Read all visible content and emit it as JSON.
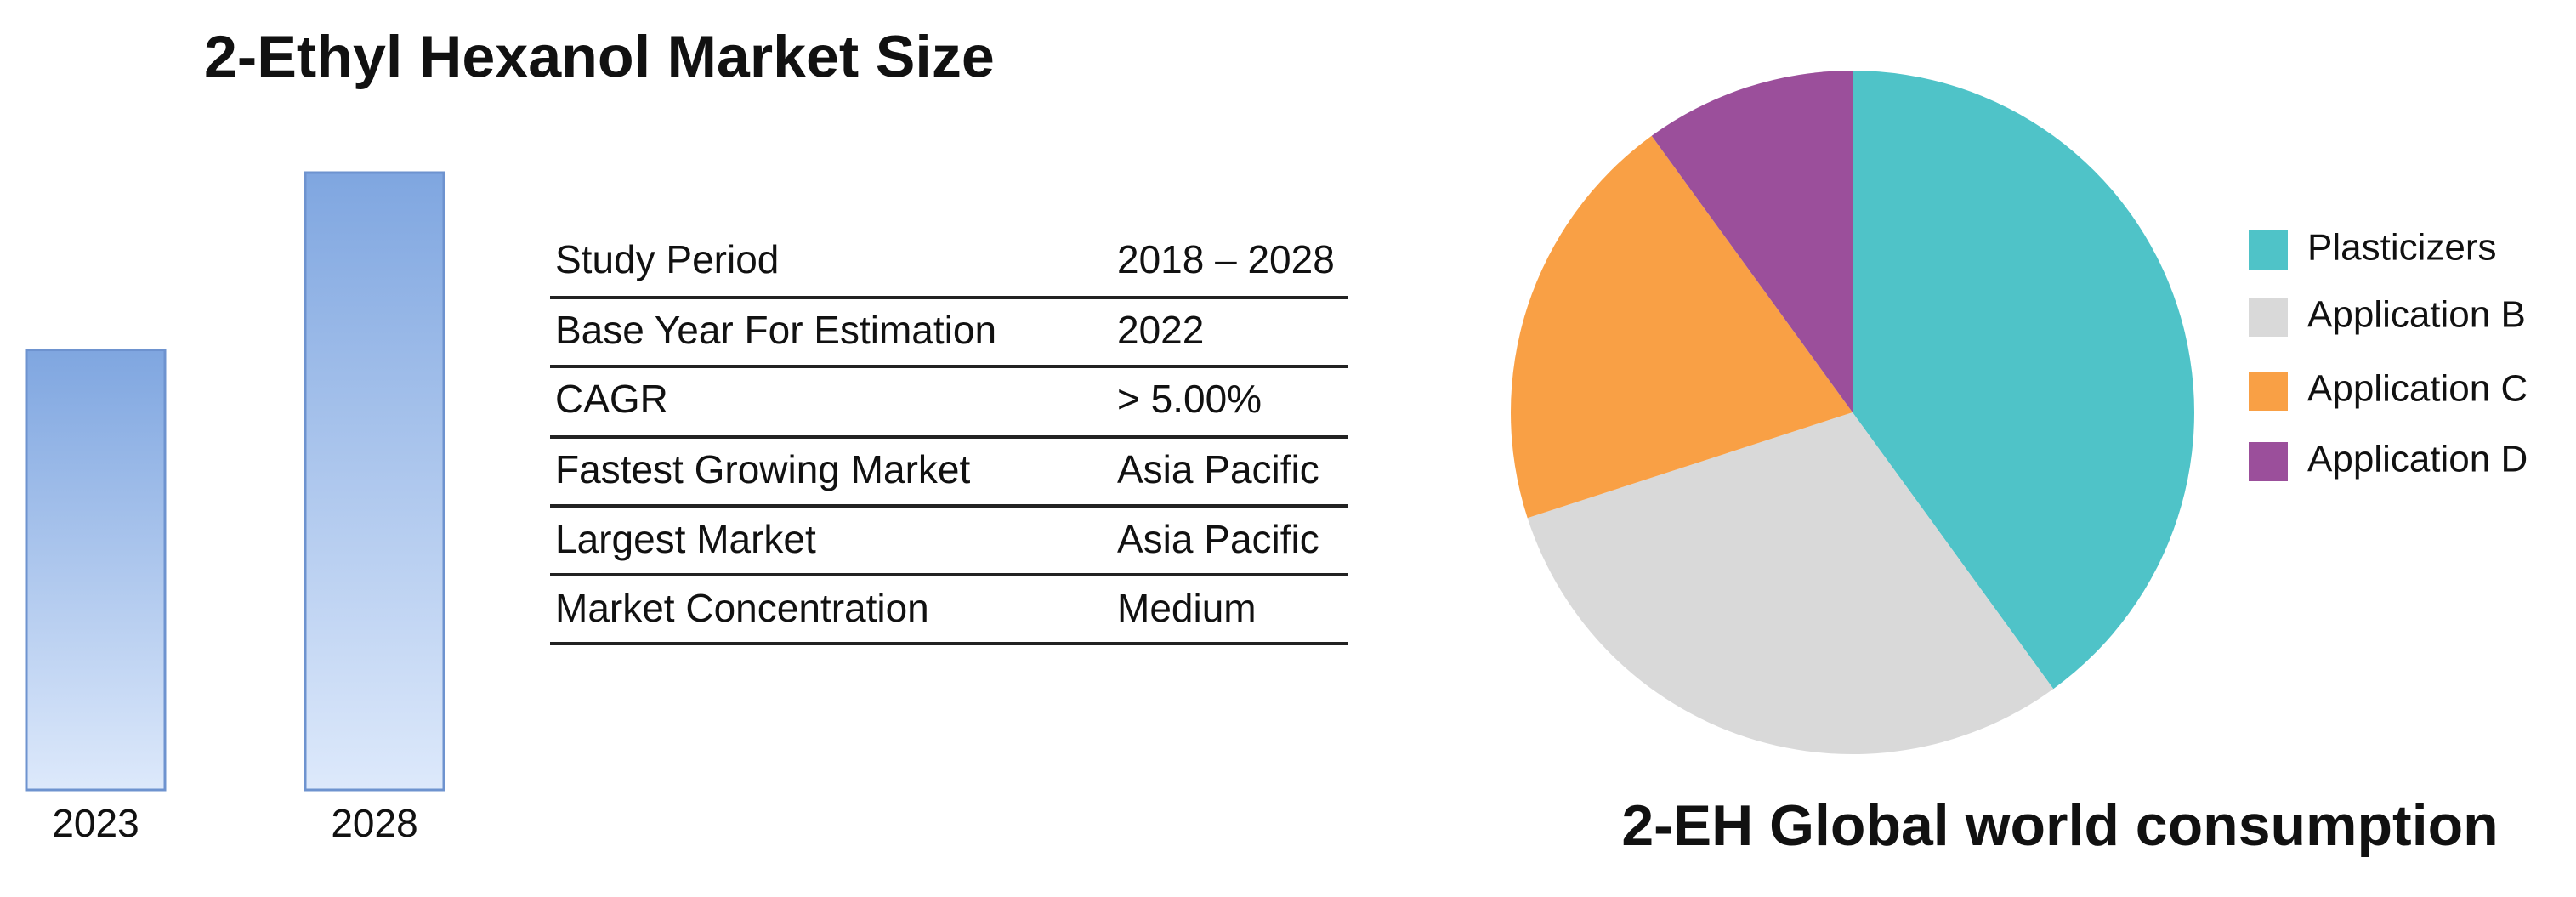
{
  "chart_data": [
    {
      "type": "bar",
      "title": "2-Ethyl Hexanol Market Size",
      "categories": [
        "2023",
        "2028"
      ],
      "values": [
        268,
        376
      ],
      "ylim": [
        0,
        376
      ],
      "color": "#7fa6e0"
    },
    {
      "type": "pie",
      "title": "2-EH Global world consumption",
      "categories": [
        "Plasticizers",
        "Application B",
        "Application C",
        "Application D"
      ],
      "values": [
        40,
        30,
        20,
        10
      ],
      "colors": [
        "#4fc3c8",
        "#d9d9d9",
        "#f9a045",
        "#9b4f9b"
      ],
      "legend": "right"
    }
  ],
  "table": {
    "rows": [
      [
        "Study Period",
        "2018 – 2028"
      ],
      [
        "Base Year For Estimation",
        "2022"
      ],
      [
        "CAGR",
        "> 5.00%"
      ],
      [
        "Fastest Growing Market",
        "Asia Pacific"
      ],
      [
        "Largest Market",
        "Asia Pacific"
      ],
      [
        "Market Concentration",
        "Medium"
      ]
    ]
  }
}
